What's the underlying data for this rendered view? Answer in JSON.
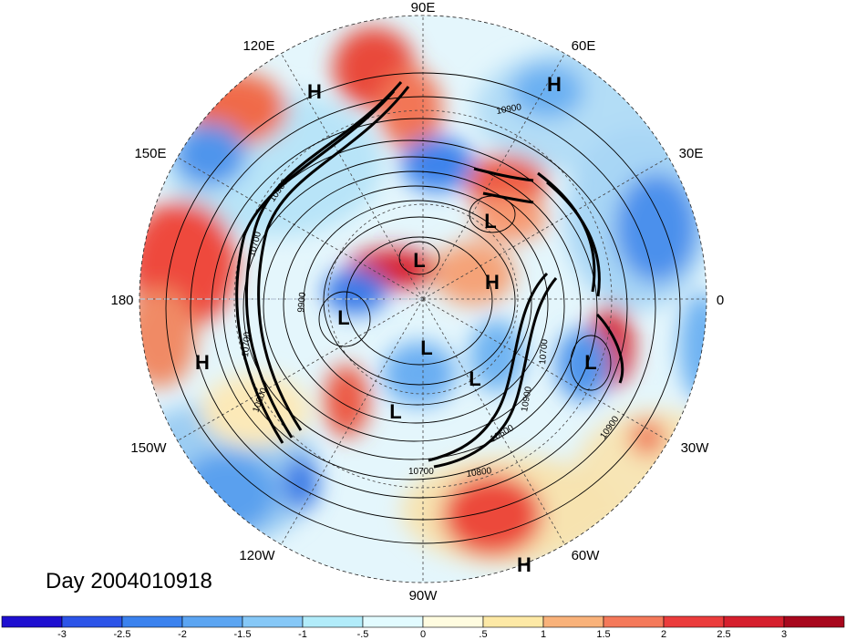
{
  "date_label": "Day 2004010918",
  "longitude_labels": [
    {
      "text": "90E"
    },
    {
      "text": "60E"
    },
    {
      "text": "30E"
    },
    {
      "text": "0"
    },
    {
      "text": "30W"
    },
    {
      "text": "60W"
    },
    {
      "text": "90W"
    },
    {
      "text": "120W"
    },
    {
      "text": "150W"
    },
    {
      "text": "180"
    },
    {
      "text": "150E"
    },
    {
      "text": "120E"
    }
  ],
  "pressure_centers": [
    {
      "type": "H"
    },
    {
      "type": "H"
    },
    {
      "type": "H"
    },
    {
      "type": "H"
    },
    {
      "type": "H"
    },
    {
      "type": "L"
    },
    {
      "type": "L"
    },
    {
      "type": "L"
    },
    {
      "type": "L"
    },
    {
      "type": "L"
    },
    {
      "type": "L"
    },
    {
      "type": "L"
    }
  ],
  "contour_labels": [
    "10900",
    "10900",
    "10700",
    "9900",
    "10900",
    "10700",
    "10900",
    "10700",
    "10600",
    "10900",
    "10700",
    "10800"
  ],
  "colorbar": {
    "colors": [
      "#1e0fd0",
      "#2c54e8",
      "#3b82ee",
      "#5ca5f2",
      "#86c8f7",
      "#b2ecfa",
      "#e2fbff",
      "#fffce0",
      "#fde9a6",
      "#f9b27a",
      "#f4795a",
      "#eb3c3c",
      "#d61f2d",
      "#a8071d"
    ],
    "tick_labels": [
      "-3",
      "-2.5",
      "-2",
      "-1.5",
      "-1",
      "-.5",
      "0",
      ".5",
      "1",
      "1.5",
      "2",
      "2.5",
      "3"
    ]
  }
}
